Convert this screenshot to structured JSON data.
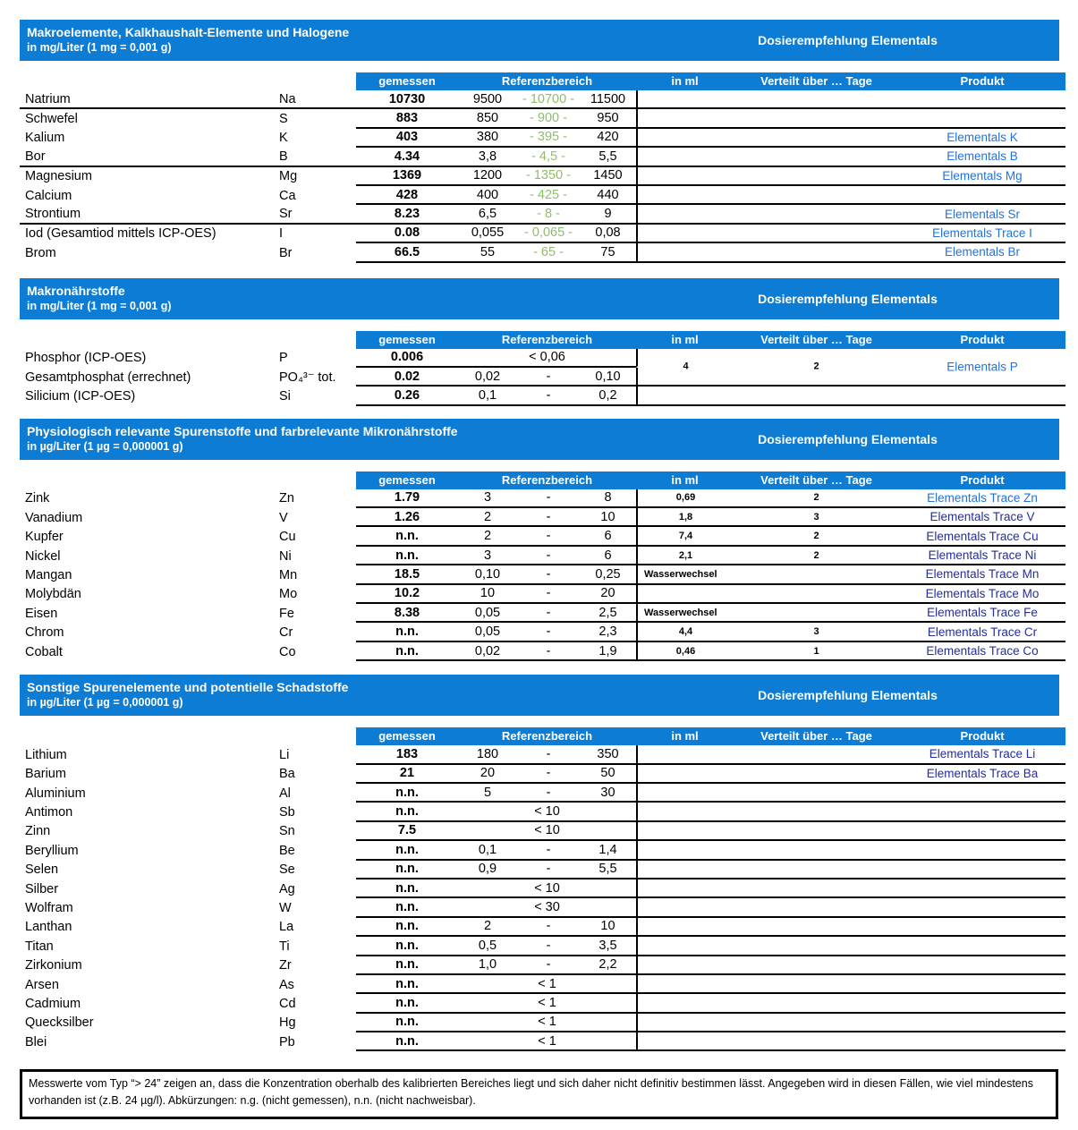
{
  "labels": {
    "dosing_header": "Dosierempfehlung Elementals",
    "col_measured": "gemessen",
    "col_reference": "Referenzbereich",
    "col_in_ml": "in ml",
    "col_days": "Verteilt über … Tage",
    "col_product": "Produkt"
  },
  "colors": {
    "header_blue": "#0c7cd5",
    "reference_mid_green": "#8fbd6e",
    "product_link_bright_blue": "#1f72dd",
    "product_link_dark_blue": "#232d9b"
  },
  "sections": [
    {
      "title": "Makroelemente, Kalkhaushalt-Elemente und Halogene",
      "subtitle": "in mg/Liter (1 mg = 0,001 g)",
      "rows": [
        {
          "name": "Natrium",
          "symbol": "Na",
          "measured": "10730",
          "ref": {
            "type": "range3",
            "min": "9500",
            "mid": "10700",
            "max": "11500"
          },
          "ml": "",
          "days": "",
          "product": "",
          "product_style": "",
          "group_end": true
        },
        {
          "name": "Schwefel",
          "symbol": "S",
          "measured": "883",
          "ref": {
            "type": "range3",
            "min": "850",
            "mid": "900",
            "max": "950"
          },
          "ml": "",
          "days": "",
          "product": "",
          "product_style": ""
        },
        {
          "name": "Kalium",
          "symbol": "K",
          "measured": "403",
          "ref": {
            "type": "range3",
            "min": "380",
            "mid": "395",
            "max": "420"
          },
          "ml": "",
          "days": "",
          "product": "Elementals K",
          "product_style": "bright"
        },
        {
          "name": "Bor",
          "symbol": "B",
          "measured": "4.34",
          "ref": {
            "type": "range3",
            "min": "3,8",
            "mid": "4,5",
            "max": "5,5"
          },
          "ml": "",
          "days": "",
          "product": "Elementals B",
          "product_style": "bright",
          "group_end": true
        },
        {
          "name": "Magnesium",
          "symbol": "Mg",
          "measured": "1369",
          "ref": {
            "type": "range3",
            "min": "1200",
            "mid": "1350",
            "max": "1450"
          },
          "ml": "",
          "days": "",
          "product": "Elementals Mg",
          "product_style": "bright"
        },
        {
          "name": "Calcium",
          "symbol": "Ca",
          "measured": "428",
          "ref": {
            "type": "range3",
            "min": "400",
            "mid": "425",
            "max": "440"
          },
          "ml": "",
          "days": "",
          "product": "",
          "product_style": ""
        },
        {
          "name": "Strontium",
          "symbol": "Sr",
          "measured": "8.23",
          "ref": {
            "type": "range3",
            "min": "6,5",
            "mid": "8",
            "max": "9"
          },
          "ml": "",
          "days": "",
          "product": "Elementals Sr",
          "product_style": "bright",
          "group_end": true
        },
        {
          "name": "Iod (Gesamtiod mittels ICP-OES)",
          "symbol": "I",
          "measured": "0.08",
          "ref": {
            "type": "range3",
            "min": "0,055",
            "mid": "0,065",
            "max": "0,08"
          },
          "ml": "",
          "days": "",
          "product": "Elementals Trace I",
          "product_style": "bright"
        },
        {
          "name": "Brom",
          "symbol": "Br",
          "measured": "66.5",
          "ref": {
            "type": "range3",
            "min": "55",
            "mid": "65",
            "max": "75"
          },
          "ml": "",
          "days": "",
          "product": "Elementals Br",
          "product_style": "bright"
        }
      ]
    },
    {
      "title": "Makronährstoffe",
      "subtitle": "in mg/Liter (1 mg = 0,001 g)",
      "rows": [
        {
          "name": "Phosphor (ICP-OES)",
          "symbol": "P",
          "measured": "0.006",
          "ref": {
            "type": "less",
            "text": "< 0,06"
          },
          "ml": "4",
          "days": "2",
          "product": "Elementals P",
          "product_style": "bright",
          "merge": "start"
        },
        {
          "name": "Gesamtphosphat (errechnet)",
          "symbol": "PO₄³⁻ tot.",
          "measured": "0.02",
          "ref": {
            "type": "range2",
            "min": "0,02",
            "max": "0,10"
          },
          "ml": "",
          "days": "",
          "product": "",
          "product_style": "",
          "merge": "cont"
        },
        {
          "name": "Silicium (ICP-OES)",
          "symbol": "Si",
          "measured": "0.26",
          "ref": {
            "type": "range2",
            "min": "0,1",
            "max": "0,2"
          },
          "ml": "",
          "days": "",
          "product": "",
          "product_style": ""
        }
      ]
    },
    {
      "title": "Physiologisch relevante Spurenstoffe und farbrelevante Mikronährstoffe",
      "subtitle": "in µg/Liter (1 µg = 0,000001 g)",
      "rows": [
        {
          "name": "Zink",
          "symbol": "Zn",
          "measured": "1.79",
          "ref": {
            "type": "range2",
            "min": "3",
            "max": "8"
          },
          "ml": "0,69",
          "days": "2",
          "product": "Elementals Trace Zn",
          "product_style": "bright"
        },
        {
          "name": "Vanadium",
          "symbol": "V",
          "measured": "1.26",
          "ref": {
            "type": "range2",
            "min": "2",
            "max": "10"
          },
          "ml": "1,8",
          "days": "3",
          "product": "Elementals Trace V",
          "product_style": "dark"
        },
        {
          "name": "Kupfer",
          "symbol": "Cu",
          "measured": "n.n.",
          "ref": {
            "type": "range2",
            "min": "2",
            "max": "6"
          },
          "ml": "7,4",
          "days": "2",
          "product": "Elementals Trace Cu",
          "product_style": "dark"
        },
        {
          "name": "Nickel",
          "symbol": "Ni",
          "measured": "n.n.",
          "ref": {
            "type": "range2",
            "min": "3",
            "max": "6"
          },
          "ml": "2,1",
          "days": "2",
          "product": "Elementals Trace Ni",
          "product_style": "dark"
        },
        {
          "name": "Mangan",
          "symbol": "Mn",
          "measured": "18.5",
          "ref": {
            "type": "range2",
            "min": "0,10",
            "max": "0,25"
          },
          "ml": "Wasserwechsel",
          "days": "",
          "product": "Elementals Trace Mn",
          "product_style": "dark"
        },
        {
          "name": "Molybdän",
          "symbol": "Mo",
          "measured": "10.2",
          "ref": {
            "type": "range2",
            "min": "10",
            "max": "20"
          },
          "ml": "",
          "days": "",
          "product": "Elementals Trace Mo",
          "product_style": "dark"
        },
        {
          "name": "Eisen",
          "symbol": "Fe",
          "measured": "8.38",
          "ref": {
            "type": "range2",
            "min": "0,05",
            "max": "2,5"
          },
          "ml": "Wasserwechsel",
          "days": "",
          "product": "Elementals Trace Fe",
          "product_style": "dark"
        },
        {
          "name": "Chrom",
          "symbol": "Cr",
          "measured": "n.n.",
          "ref": {
            "type": "range2",
            "min": "0,05",
            "max": "2,3"
          },
          "ml": "4,4",
          "days": "3",
          "product": "Elementals Trace Cr",
          "product_style": "dark"
        },
        {
          "name": "Cobalt",
          "symbol": "Co",
          "measured": "n.n.",
          "ref": {
            "type": "range2",
            "min": "0,02",
            "max": "1,9"
          },
          "ml": "0,46",
          "days": "1",
          "product": "Elementals Trace Co",
          "product_style": "dark"
        }
      ]
    },
    {
      "title": "Sonstige Spurenelemente und potentielle Schadstoffe",
      "subtitle": "in µg/Liter (1 µg = 0,000001 g)",
      "rows": [
        {
          "name": "Lithium",
          "symbol": "Li",
          "measured": "183",
          "ref": {
            "type": "range2",
            "min": "180",
            "max": "350"
          },
          "ml": "",
          "days": "",
          "product": "Elementals Trace Li",
          "product_style": "dark"
        },
        {
          "name": "Barium",
          "symbol": "Ba",
          "measured": "21",
          "ref": {
            "type": "range2",
            "min": "20",
            "max": "50"
          },
          "ml": "",
          "days": "",
          "product": "Elementals Trace Ba",
          "product_style": "dark"
        },
        {
          "name": "Aluminium",
          "symbol": "Al",
          "measured": "n.n.",
          "ref": {
            "type": "range2",
            "min": "5",
            "max": "30"
          },
          "ml": "",
          "days": "",
          "product": "",
          "product_style": ""
        },
        {
          "name": "Antimon",
          "symbol": "Sb",
          "measured": "n.n.",
          "ref": {
            "type": "less",
            "text": "< 10"
          },
          "ml": "",
          "days": "",
          "product": "",
          "product_style": ""
        },
        {
          "name": "Zinn",
          "symbol": "Sn",
          "measured": "7.5",
          "ref": {
            "type": "less",
            "text": "< 10"
          },
          "ml": "",
          "days": "",
          "product": "",
          "product_style": ""
        },
        {
          "name": "Beryllium",
          "symbol": "Be",
          "measured": "n.n.",
          "ref": {
            "type": "range2",
            "min": "0,1",
            "max": "1,4"
          },
          "ml": "",
          "days": "",
          "product": "",
          "product_style": ""
        },
        {
          "name": "Selen",
          "symbol": "Se",
          "measured": "n.n.",
          "ref": {
            "type": "range2",
            "min": "0,9",
            "max": "5,5"
          },
          "ml": "",
          "days": "",
          "product": "",
          "product_style": ""
        },
        {
          "name": "Silber",
          "symbol": "Ag",
          "measured": "n.n.",
          "ref": {
            "type": "less",
            "text": "< 10"
          },
          "ml": "",
          "days": "",
          "product": "",
          "product_style": ""
        },
        {
          "name": "Wolfram",
          "symbol": "W",
          "measured": "n.n.",
          "ref": {
            "type": "less",
            "text": "< 30"
          },
          "ml": "",
          "days": "",
          "product": "",
          "product_style": ""
        },
        {
          "name": "Lanthan",
          "symbol": "La",
          "measured": "n.n.",
          "ref": {
            "type": "range2",
            "min": "2",
            "max": "10"
          },
          "ml": "",
          "days": "",
          "product": "",
          "product_style": ""
        },
        {
          "name": "Titan",
          "symbol": "Ti",
          "measured": "n.n.",
          "ref": {
            "type": "range2",
            "min": "0,5",
            "max": "3,5"
          },
          "ml": "",
          "days": "",
          "product": "",
          "product_style": ""
        },
        {
          "name": "Zirkonium",
          "symbol": "Zr",
          "measured": "n.n.",
          "ref": {
            "type": "range2",
            "min": "1,0",
            "max": "2,2"
          },
          "ml": "",
          "days": "",
          "product": "",
          "product_style": ""
        },
        {
          "name": "Arsen",
          "symbol": "As",
          "measured": "n.n.",
          "ref": {
            "type": "less",
            "text": "< 1"
          },
          "ml": "",
          "days": "",
          "product": "",
          "product_style": ""
        },
        {
          "name": "Cadmium",
          "symbol": "Cd",
          "measured": "n.n.",
          "ref": {
            "type": "less",
            "text": "< 1"
          },
          "ml": "",
          "days": "",
          "product": "",
          "product_style": ""
        },
        {
          "name": "Quecksilber",
          "symbol": "Hg",
          "measured": "n.n.",
          "ref": {
            "type": "less",
            "text": "< 1"
          },
          "ml": "",
          "days": "",
          "product": "",
          "product_style": ""
        },
        {
          "name": "Blei",
          "symbol": "Pb",
          "measured": "n.n.",
          "ref": {
            "type": "less",
            "text": "< 1"
          },
          "ml": "",
          "days": "",
          "product": "",
          "product_style": ""
        }
      ]
    }
  ],
  "footnote": {
    "text": "Messwerte vom Typ “> 24” zeigen an, dass die Konzentration oberhalb des kalibrierten Bereiches liegt und sich daher nicht definitiv bestimmen lässt. Angegeben wird in diesen Fällen, wie viel mindestens vorhanden ist (z.B. 24 µg/l). Abkürzungen: n.g. (nicht gemessen), n.n. (nicht nachweisbar)."
  }
}
